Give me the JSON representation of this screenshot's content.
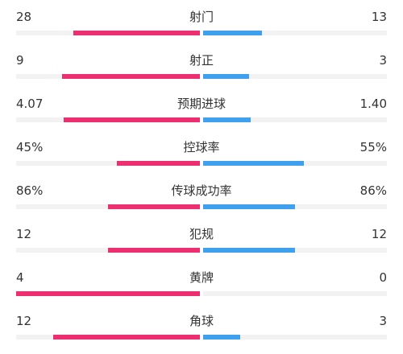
{
  "colors": {
    "home": "#ee2f6f",
    "away": "#3fa0f0",
    "track": "#f2f2f2"
  },
  "stats": [
    {
      "label": "射门",
      "home": "28",
      "away": "13",
      "home_fill": 0.69,
      "away_fill": 0.32
    },
    {
      "label": "射正",
      "home": "9",
      "away": "3",
      "home_fill": 0.75,
      "away_fill": 0.25
    },
    {
      "label": "预期进球",
      "home": "4.07",
      "away": "1.40",
      "home_fill": 0.74,
      "away_fill": 0.26
    },
    {
      "label": "控球率",
      "home": "45%",
      "away": "55%",
      "home_fill": 0.45,
      "away_fill": 0.55
    },
    {
      "label": "传球成功率",
      "home": "86%",
      "away": "86%",
      "home_fill": 0.5,
      "away_fill": 0.5
    },
    {
      "label": "犯规",
      "home": "12",
      "away": "12",
      "home_fill": 0.5,
      "away_fill": 0.5
    },
    {
      "label": "黄牌",
      "home": "4",
      "away": "0",
      "home_fill": 1.0,
      "away_fill": 0.0
    },
    {
      "label": "角球",
      "home": "12",
      "away": "3",
      "home_fill": 0.8,
      "away_fill": 0.2
    }
  ]
}
